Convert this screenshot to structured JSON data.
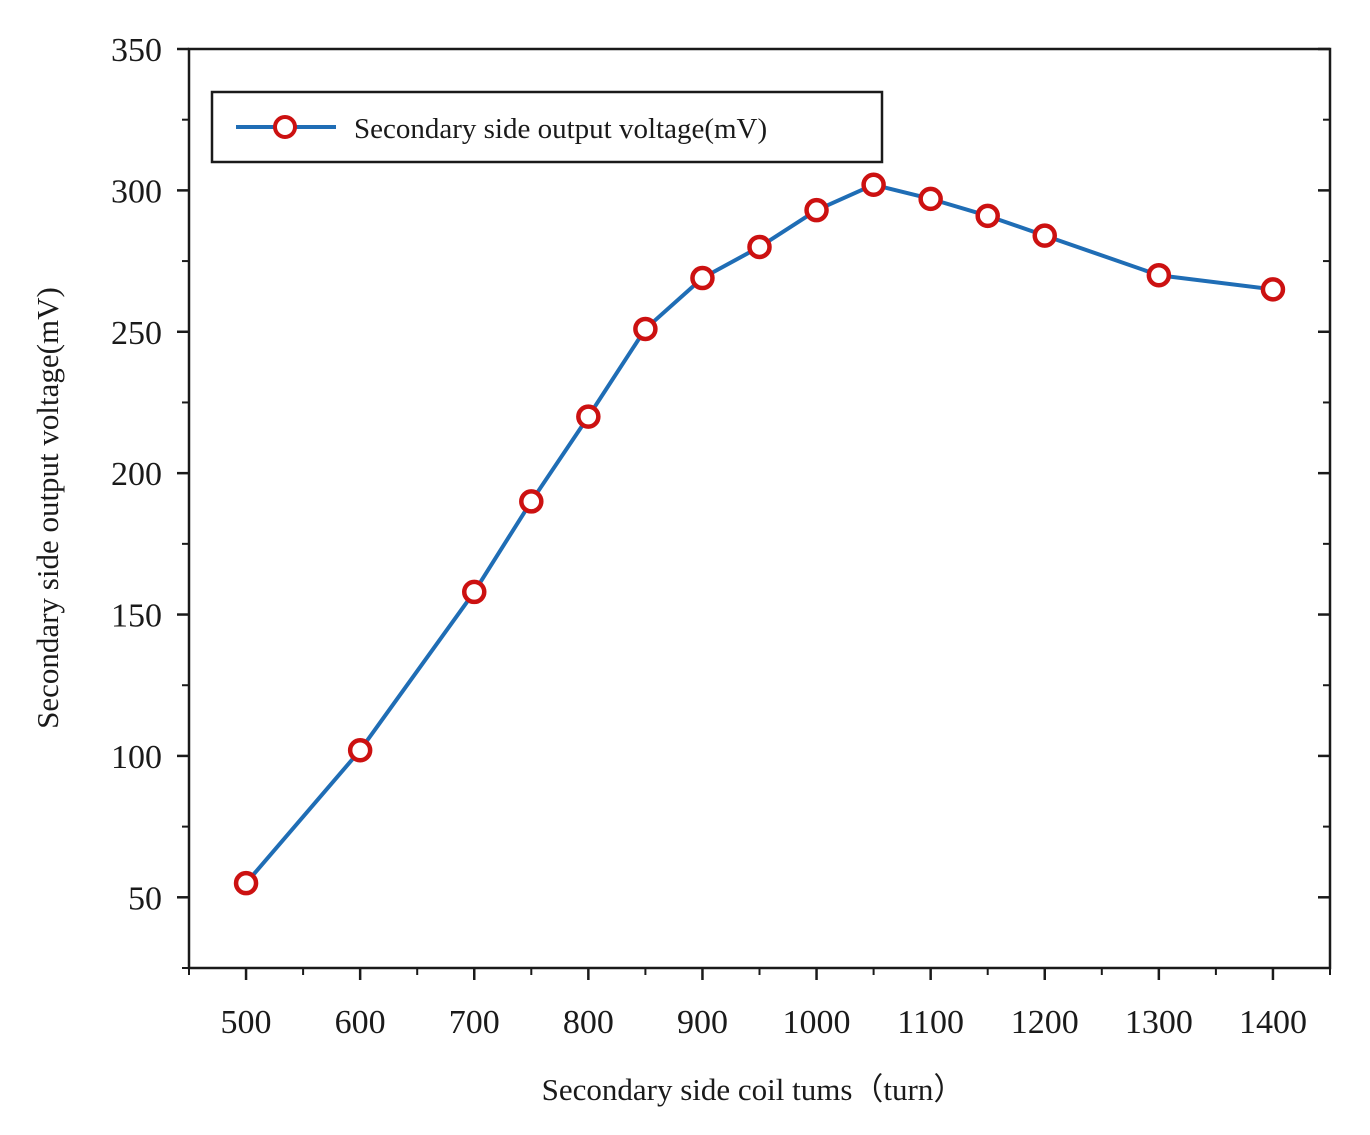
{
  "chart_data": {
    "type": "line",
    "title": "",
    "xlabel": "Secondary side coil tums（turn）",
    "ylabel": "Secondary side output voltage(mV)",
    "x": [
      500,
      600,
      700,
      750,
      800,
      850,
      900,
      950,
      1000,
      1050,
      1100,
      1150,
      1200,
      1300,
      1400
    ],
    "series": [
      {
        "name": "Secondary side output voltage(mV)",
        "values": [
          55,
          102,
          158,
          190,
          220,
          251,
          269,
          280,
          293,
          302,
          297,
          291,
          284,
          270,
          265
        ],
        "line_color": "#1f6db5",
        "marker_color": "#cc1111",
        "marker": "hollow-circle"
      }
    ],
    "xlim": [
      450,
      1450
    ],
    "ylim": [
      25,
      350
    ],
    "xticks": [
      500,
      600,
      700,
      800,
      900,
      1000,
      1100,
      1200,
      1300,
      1400
    ],
    "xtick_labels": [
      "500",
      "600",
      "700",
      "800",
      "900",
      "1000",
      "1100",
      "1200",
      "1300",
      "1400"
    ],
    "yticks": [
      50,
      100,
      150,
      200,
      250,
      300,
      350
    ],
    "ytick_labels": [
      "50",
      "100",
      "150",
      "200",
      "250",
      "300",
      "350"
    ],
    "grid": false,
    "legend_position": "top-left"
  }
}
